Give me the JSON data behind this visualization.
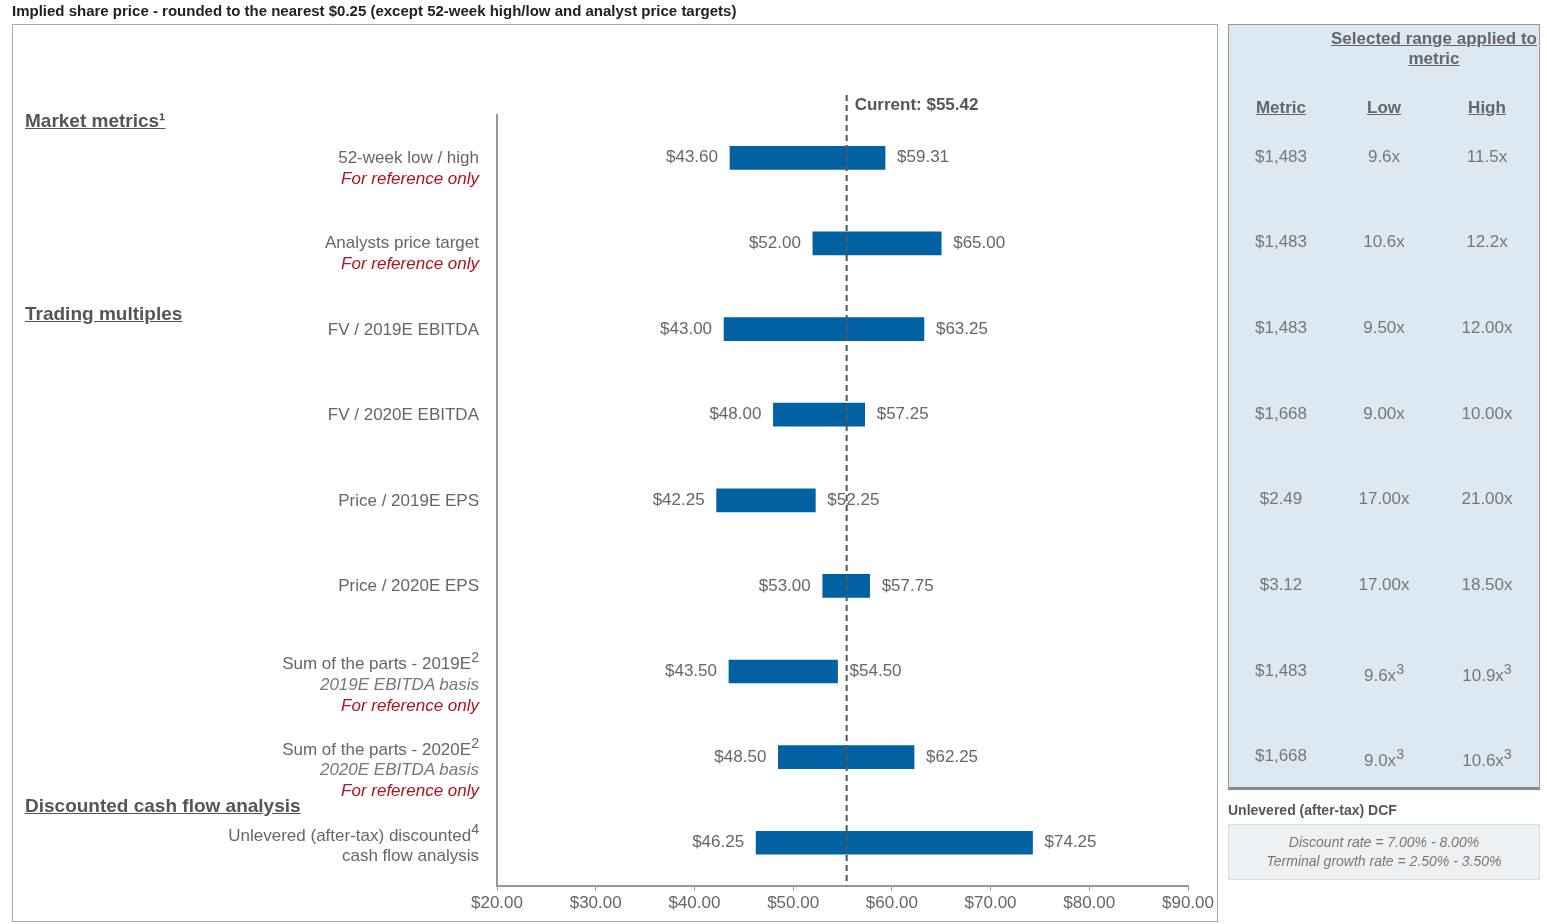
{
  "chart_data": [
    {
      "type": "bar",
      "orientation": "horizontal",
      "title": "Implied share price - rounded to the nearest $0.25 (except 52-week high/low and analyst price targets)",
      "categories": [
        "52-week low / high\nFor reference only",
        "Analysts price target\nFor reference only",
        "FV / 2019E EBITDA",
        "FV / 2020E EBITDA",
        "Price / 2019E EPS",
        "Price / 2020E EPS",
        "Sum of the parts - 2019E$^{2}$\n2019E EBITDA basis\nFor reference only",
        "Sum of the parts - 2020E$^{2}$\n2020E EBITDA basis\nFor reference only",
        "Unlevered (after-tax) discounted$^{4}$ cash flow analysis"
      ],
      "base": [
        43.6,
        52,
        43,
        48,
        42.25,
        53,
        43.5,
        48.5,
        46.25
      ],
      "values": [
        15.71,
        13,
        20.25,
        9.25,
        10,
        4.75,
        11,
        13.75,
        28
      ],
      "color": "#0062a3",
      "xlim": [
        20,
        90
      ],
      "xticks": [
        {
          "value": 20,
          "label": "$20.00"
        },
        {
          "value": 30,
          "label": "$30.00"
        },
        {
          "value": 40,
          "label": "$40.00"
        },
        {
          "value": 50,
          "label": "$50.00"
        },
        {
          "value": 60,
          "label": "$60.00"
        },
        {
          "value": 70,
          "label": "$70.00"
        },
        {
          "value": 80,
          "label": "$80.00"
        },
        {
          "value": 90,
          "label": "$90.00"
        }
      ],
      "ref_lines": [
        {
          "axis": "x",
          "value": 55.42,
          "label": "Current: $55.42",
          "line_style": "dashed",
          "color": "#555555"
        }
      ],
      "annotations": [
        "Market metrics¹",
        "Trading multiples",
        "Discounted cash flow analysis",
        {
          "text": "$43.60",
          "x": 43.6,
          "y": "52-week low / high\nFor reference only"
        },
        {
          "text": "$59.31",
          "x": 59.31,
          "y": "52-week low / high\nFor reference only"
        },
        {
          "text": "$52.00",
          "x": 52,
          "y": "Analysts price target\nFor reference only"
        },
        {
          "text": "$65.00",
          "x": 65,
          "y": "Analysts price target\nFor reference only"
        },
        {
          "text": "$43.00",
          "x": 43,
          "y": "FV / 2019E EBITDA"
        },
        {
          "text": "$63.25",
          "x": 63.25,
          "y": "FV / 2019E EBITDA"
        },
        {
          "text": "$48.00",
          "x": 48,
          "y": "FV / 2020E EBITDA"
        },
        {
          "text": "$57.25",
          "x": 57.25,
          "y": "FV / 2020E EBITDA"
        },
        {
          "text": "$42.25",
          "x": 42.25,
          "y": "Price / 2019E EPS"
        },
        {
          "text": "$52.25",
          "x": 52.25,
          "y": "Price / 2019E EPS"
        },
        {
          "text": "$53.00",
          "x": 53,
          "y": "Price / 2020E EPS"
        },
        {
          "text": "$57.75",
          "x": 57.75,
          "y": "Price / 2020E EPS"
        },
        {
          "text": "$43.50",
          "x": 43.5,
          "y": "Sum of the parts - 2019E$^{2}$\n2019E EBITDA basis\nFor reference only"
        },
        {
          "text": "$54.50",
          "x": 54.5,
          "y": "Sum of the parts - 2019E$^{2}$\n2019E EBITDA basis\nFor reference only"
        },
        {
          "text": "$48.50",
          "x": 48.5,
          "y": "Sum of the parts - 2020E$^{2}$\n2020E EBITDA basis\nFor reference only"
        },
        {
          "text": "$62.25",
          "x": 62.25,
          "y": "Sum of the parts - 2020E$^{2}$\n2020E EBITDA basis\nFor reference only"
        },
        {
          "text": "$46.25",
          "x": 46.25,
          "y": "Unlevered (after-tax) discounted$^{4}$ cash flow analysis"
        },
        {
          "text": "$74.25",
          "x": 74.25,
          "y": "Unlevered (after-tax) discounted$^{4}$ cash flow analysis"
        }
      ]
    },
    {
      "type": "other",
      "title": "Selected range applied to metric",
      "categories": [
        "Metric",
        "Low",
        "High"
      ],
      "annotations": [
        "$1,483",
        "9.6x",
        "11.5x",
        "$1,483",
        "10.6x",
        "12.2x",
        "$1,483",
        "9.50x",
        "12.00x",
        "$1,668",
        "9.00x",
        "10.00x",
        "$2.49",
        "17.00x",
        "21.00x",
        "$3.12",
        "17.00x",
        "18.50x",
        "$1,483",
        "9.6x$^{3}$",
        "10.9x$^{3}$",
        "$1,668",
        "9.0x$^{3}$",
        "10.6x$^{3}$"
      ]
    },
    {
      "type": "other",
      "title": "Unlevered (after-tax) DCF",
      "annotations": [
        "Discount rate = 7.00% - 8.00%",
        "Terminal growth rate = 2.50% - 3.50%"
      ]
    }
  ]
}
